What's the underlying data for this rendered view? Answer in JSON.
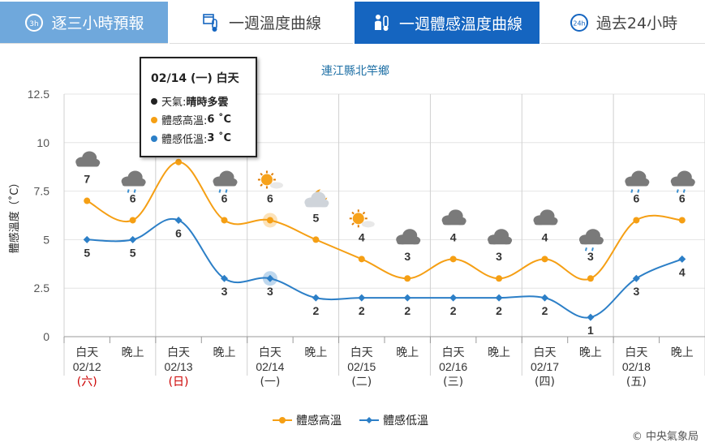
{
  "tabs": [
    {
      "label": "逐三小時預報",
      "icon": "3h-clock-icon",
      "bg": "#6fa8dc",
      "color": "#ffffff",
      "active": false
    },
    {
      "label": "一週溫度曲線",
      "icon": "calendar-thermometer-icon",
      "bg": "#ffffff",
      "color": "#444444",
      "active": false
    },
    {
      "label": "一週體感溫度曲線",
      "icon": "person-thermometer-icon",
      "bg": "#1565c0",
      "color": "#ffffff",
      "active": true
    },
    {
      "label": "過去24小時",
      "icon": "24h-clock-icon",
      "bg": "#ffffff",
      "color": "#444444",
      "active": false
    }
  ],
  "tooltip": {
    "title": "02/14 (一) 白天",
    "rows": [
      {
        "label": "天氣: ",
        "value": "晴時多雲",
        "dot": "#222222"
      },
      {
        "label": "體感高溫: ",
        "value": "6 ˚C",
        "dot": "#f59f14"
      },
      {
        "label": "體感低溫: ",
        "value": "3 ˚C",
        "dot": "#2c7fc7"
      }
    ]
  },
  "credit": "© 中央氣象局",
  "chart_data": {
    "type": "line",
    "title": "連江縣北竿鄉",
    "ylabel": "體感溫度（˚C）",
    "ylim": [
      0,
      12.5
    ],
    "yticks": [
      "0",
      "2.5",
      "5",
      "7.5",
      "10",
      "12.5"
    ],
    "grid": true,
    "legend_position": "bottom-center",
    "categories": [
      {
        "period": "白天",
        "date": "02/12",
        "weekday": "(六)",
        "holiday": true
      },
      {
        "period": "晚上",
        "date": "",
        "weekday": "",
        "holiday": false
      },
      {
        "period": "白天",
        "date": "02/13",
        "weekday": "(日)",
        "holiday": true
      },
      {
        "period": "晚上",
        "date": "",
        "weekday": "",
        "holiday": false
      },
      {
        "period": "白天",
        "date": "02/14",
        "weekday": "(一)",
        "holiday": false
      },
      {
        "period": "晚上",
        "date": "",
        "weekday": "",
        "holiday": false
      },
      {
        "period": "白天",
        "date": "02/15",
        "weekday": "(二)",
        "holiday": false
      },
      {
        "period": "晚上",
        "date": "",
        "weekday": "",
        "holiday": false
      },
      {
        "period": "白天",
        "date": "02/16",
        "weekday": "(三)",
        "holiday": false
      },
      {
        "period": "晚上",
        "date": "",
        "weekday": "",
        "holiday": false
      },
      {
        "period": "白天",
        "date": "02/17",
        "weekday": "(四)",
        "holiday": false
      },
      {
        "period": "晚上",
        "date": "",
        "weekday": "",
        "holiday": false
      },
      {
        "period": "白天",
        "date": "02/18",
        "weekday": "(五)",
        "holiday": false
      },
      {
        "period": "晚上",
        "date": "",
        "weekday": "",
        "holiday": false
      }
    ],
    "series": [
      {
        "name": "體感高溫",
        "color": "#f59f14",
        "values": [
          7,
          6,
          9,
          6,
          6,
          5,
          4,
          3,
          4,
          3,
          4,
          3,
          6,
          6
        ],
        "labels": [
          7,
          6,
          null,
          6,
          6,
          5,
          4,
          3,
          4,
          3,
          4,
          3,
          6,
          6
        ]
      },
      {
        "name": "體感低溫",
        "color": "#2c7fc7",
        "values": [
          5,
          5,
          6,
          3,
          3,
          2,
          2,
          2,
          2,
          2,
          2,
          1,
          3,
          4
        ],
        "labels": [
          5,
          5,
          6,
          3,
          3,
          2,
          2,
          2,
          2,
          2,
          2,
          1,
          3,
          4
        ]
      }
    ],
    "weather_icons": [
      "cloudy-icon",
      "cloudy-rain-icon",
      "cloudy-icon",
      "cloudy-rain-icon",
      "sunny-cloud-icon",
      "partly-cloudy-night-icon",
      "sunny-cloud-icon",
      "cloudy-icon",
      "cloudy-icon",
      "cloudy-icon",
      "cloudy-icon",
      "cloudy-rain-icon",
      "cloudy-rain-icon",
      "cloudy-rain-icon"
    ],
    "highlight_index": 4,
    "holiday_color": "#cc0000"
  }
}
